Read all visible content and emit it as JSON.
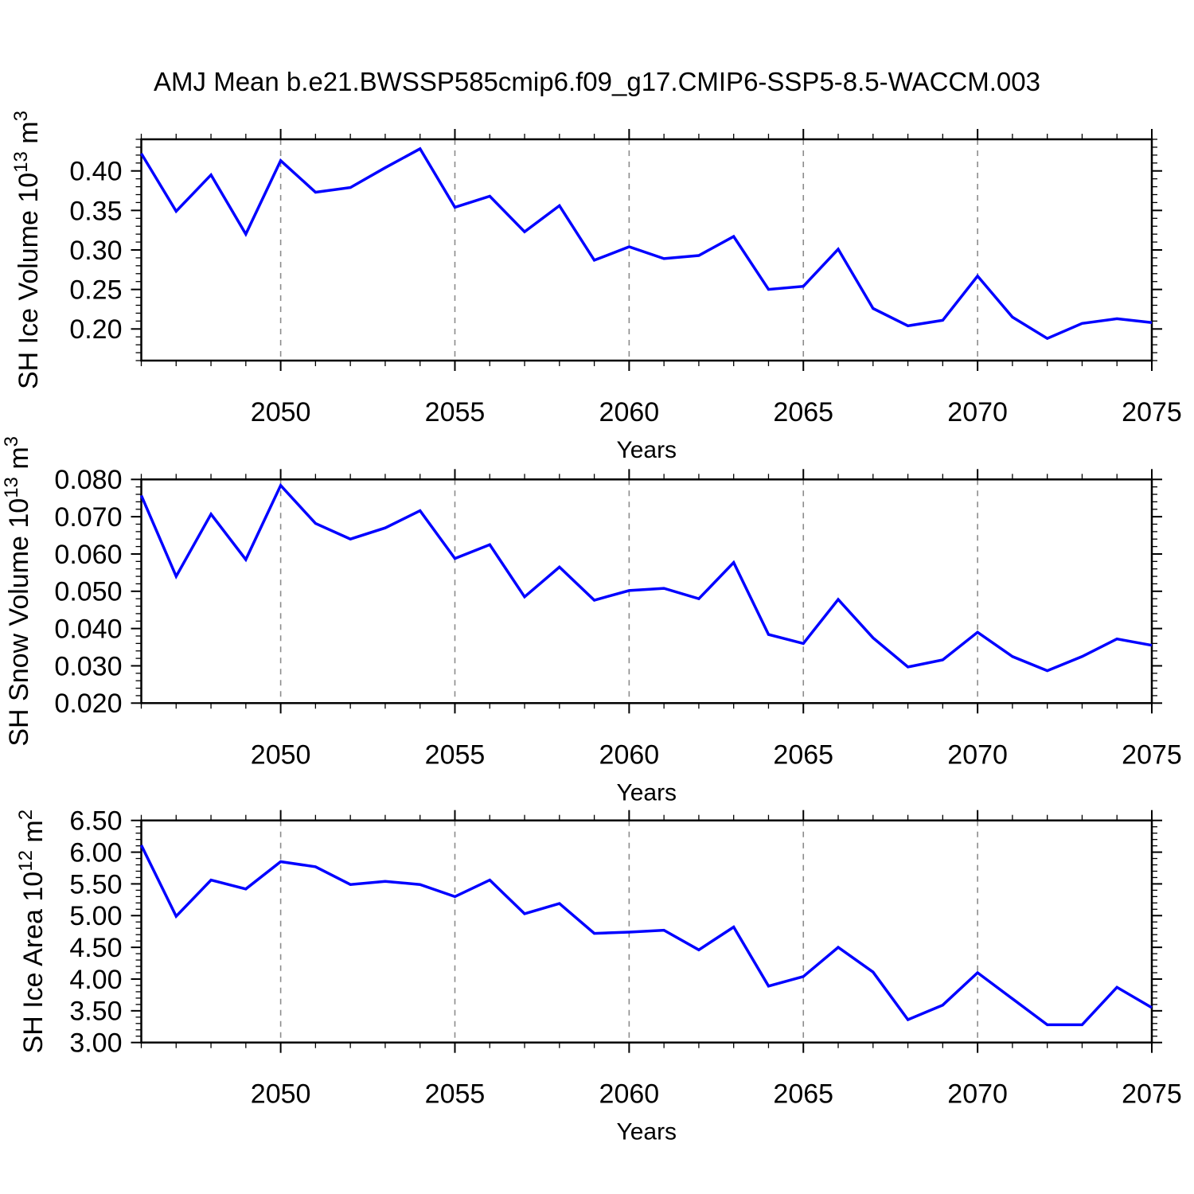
{
  "title": "AMJ Mean b.e21.BWSSP585cmip6.f09_g17.CMIP6-SSP5-8.5-WACCM.003",
  "xlabel": "Years",
  "line_color": "#0000FF",
  "grid_color": "#8c8c8c",
  "chart_data": [
    {
      "id": "sh-ice-volume",
      "type": "line",
      "ylabel": "SH Ice Volume 10^13 m^3",
      "ylabel_parts": [
        {
          "t": "SH Ice Volume 10"
        },
        {
          "t": "13",
          "sup": true
        },
        {
          "t": " m"
        },
        {
          "t": "3",
          "sup": true
        }
      ],
      "xlabel": "Years",
      "x": [
        2046,
        2047,
        2048,
        2049,
        2050,
        2051,
        2052,
        2053,
        2054,
        2055,
        2056,
        2057,
        2058,
        2059,
        2060,
        2061,
        2062,
        2063,
        2064,
        2065,
        2066,
        2067,
        2068,
        2069,
        2070,
        2071,
        2072,
        2073,
        2074,
        2075
      ],
      "values": [
        0.422,
        0.349,
        0.395,
        0.32,
        0.413,
        0.373,
        0.379,
        0.404,
        0.428,
        0.354,
        0.368,
        0.323,
        0.356,
        0.287,
        0.304,
        0.289,
        0.293,
        0.317,
        0.25,
        0.254,
        0.301,
        0.226,
        0.204,
        0.211,
        0.267,
        0.215,
        0.188,
        0.207,
        0.213,
        0.208
      ],
      "xlim": [
        2046,
        2075
      ],
      "ylim": [
        0.16,
        0.44
      ],
      "xticks": [
        2050,
        2055,
        2060,
        2065,
        2070,
        2075
      ],
      "xtick_minor_step": 1,
      "yticks": [
        0.2,
        0.25,
        0.3,
        0.35,
        0.4
      ],
      "ytick_labels": [
        "0.20",
        "0.25",
        "0.30",
        "0.35",
        "0.40"
      ],
      "ytick_minor_step": 0.01,
      "grid": "vertical-dashed",
      "legend": "none"
    },
    {
      "id": "sh-snow-volume",
      "type": "line",
      "ylabel": "SH Snow Volume 10^13 m^3",
      "ylabel_parts": [
        {
          "t": "SH Snow Volume 10"
        },
        {
          "t": "13",
          "sup": true
        },
        {
          "t": " m"
        },
        {
          "t": "3",
          "sup": true
        }
      ],
      "xlabel": "Years",
      "x": [
        2046,
        2047,
        2048,
        2049,
        2050,
        2051,
        2052,
        2053,
        2054,
        2055,
        2056,
        2057,
        2058,
        2059,
        2060,
        2061,
        2062,
        2063,
        2064,
        2065,
        2066,
        2067,
        2068,
        2069,
        2070,
        2071,
        2072,
        2073,
        2074,
        2075
      ],
      "values": [
        0.0757,
        0.054,
        0.0707,
        0.0585,
        0.0784,
        0.0682,
        0.064,
        0.067,
        0.0716,
        0.0588,
        0.0625,
        0.0485,
        0.0565,
        0.0476,
        0.0502,
        0.0508,
        0.048,
        0.0577,
        0.0384,
        0.036,
        0.0478,
        0.0375,
        0.0297,
        0.0316,
        0.039,
        0.0325,
        0.0287,
        0.0325,
        0.0372,
        0.0355
      ],
      "xlim": [
        2046,
        2075
      ],
      "ylim": [
        0.02,
        0.08
      ],
      "xticks": [
        2050,
        2055,
        2060,
        2065,
        2070,
        2075
      ],
      "xtick_minor_step": 1,
      "yticks": [
        0.02,
        0.03,
        0.04,
        0.05,
        0.06,
        0.07,
        0.08
      ],
      "ytick_labels": [
        "0.020",
        "0.030",
        "0.040",
        "0.050",
        "0.060",
        "0.070",
        "0.080"
      ],
      "ytick_minor_step": 0.002,
      "grid": "vertical-dashed",
      "legend": "none"
    },
    {
      "id": "sh-ice-area",
      "type": "line",
      "ylabel": "SH Ice Area 10^12 m^2",
      "ylabel_parts": [
        {
          "t": "SH Ice Area 10"
        },
        {
          "t": "12",
          "sup": true
        },
        {
          "t": " m"
        },
        {
          "t": "2",
          "sup": true
        }
      ],
      "xlabel": "Years",
      "x": [
        2046,
        2047,
        2048,
        2049,
        2050,
        2051,
        2052,
        2053,
        2054,
        2055,
        2056,
        2057,
        2058,
        2059,
        2060,
        2061,
        2062,
        2063,
        2064,
        2065,
        2066,
        2067,
        2068,
        2069,
        2070,
        2071,
        2072,
        2073,
        2074,
        2075
      ],
      "values": [
        6.11,
        4.99,
        5.56,
        5.42,
        5.85,
        5.77,
        5.49,
        5.54,
        5.49,
        5.3,
        5.56,
        5.03,
        5.19,
        4.72,
        4.74,
        4.77,
        4.46,
        4.82,
        3.89,
        4.04,
        4.5,
        4.11,
        3.36,
        3.59,
        4.1,
        3.69,
        3.28,
        3.28,
        3.87,
        3.55
      ],
      "xlim": [
        2046,
        2075
      ],
      "ylim": [
        3.0,
        6.5
      ],
      "xticks": [
        2050,
        2055,
        2060,
        2065,
        2070,
        2075
      ],
      "xtick_minor_step": 1,
      "yticks": [
        3.0,
        3.5,
        4.0,
        4.5,
        5.0,
        5.5,
        6.0,
        6.5
      ],
      "ytick_labels": [
        "3.00",
        "3.50",
        "4.00",
        "4.50",
        "5.00",
        "5.50",
        "6.00",
        "6.50"
      ],
      "ytick_minor_step": 0.1,
      "grid": "vertical-dashed",
      "legend": "none"
    }
  ]
}
